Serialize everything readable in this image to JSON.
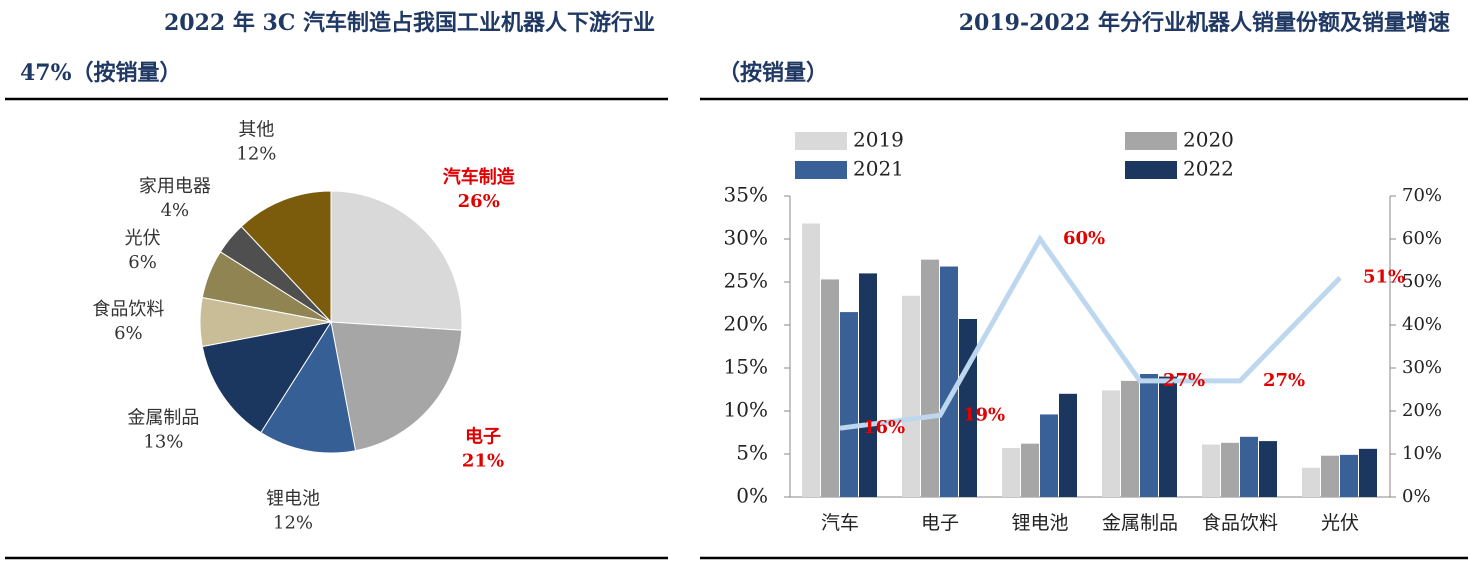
{
  "chart_data": [
    {
      "type": "pie",
      "title": "2022 年 3C 汽车制造占我国工业机器人下游行业",
      "title_line2": "47%（按销量）",
      "categories": [
        "汽车制造",
        "电子",
        "锂电池",
        "金属制品",
        "食品饮料",
        "光伏",
        "家用电器",
        "其他"
      ],
      "values": [
        26,
        21,
        12,
        13,
        6,
        6,
        4,
        12
      ],
      "value_labels": [
        "26%",
        "21%",
        "12%",
        "13%",
        "6%",
        "6%",
        "4%",
        "12%"
      ],
      "colors": [
        "#d9d9d9",
        "#a6a6a6",
        "#365f96",
        "#1b365f",
        "#c9bd98",
        "#8f8452",
        "#4f4f4f",
        "#7a5c0c"
      ],
      "label_colors": [
        "#e00000",
        "#e00000",
        "#333333",
        "#333333",
        "#333333",
        "#333333",
        "#333333",
        "#333333"
      ]
    },
    {
      "type": "bar-line",
      "title": "2019-2022  年分行业机器人销量份额及销量增速",
      "title_line2": "（按销量）",
      "categories": [
        "汽车",
        "电子",
        "锂电池",
        "金属制品",
        "食品饮料",
        "光伏"
      ],
      "series": [
        {
          "name": "2019",
          "color": "#d9d9d9",
          "values": [
            31.8,
            23.4,
            5.7,
            12.4,
            6.1,
            3.4
          ]
        },
        {
          "name": "2020",
          "color": "#a6a6a6",
          "values": [
            25.3,
            27.6,
            6.2,
            13.5,
            6.3,
            4.8
          ]
        },
        {
          "name": "2021",
          "color": "#3a6098",
          "values": [
            21.5,
            26.8,
            9.6,
            14.3,
            7.0,
            4.9
          ]
        },
        {
          "name": "2022",
          "color": "#1b365f",
          "values": [
            26.0,
            20.7,
            12.0,
            14.0,
            6.5,
            5.6
          ]
        }
      ],
      "line": {
        "axis": "y2",
        "color": "#bdd7ee",
        "label_color": "#e00000",
        "values": [
          16,
          19,
          60,
          27,
          27,
          51
        ],
        "value_labels": [
          "16%",
          "19%",
          "60%",
          "27%",
          "27%",
          "51%"
        ]
      },
      "ylim": [
        0,
        35
      ],
      "yticks": [
        {
          "value": 0,
          "label": "0%"
        },
        {
          "value": 5,
          "label": "5%"
        },
        {
          "value": 10,
          "label": "10%"
        },
        {
          "value": 15,
          "label": "15%"
        },
        {
          "value": 20,
          "label": "20%"
        },
        {
          "value": 25,
          "label": "25%"
        },
        {
          "value": 30,
          "label": "30%"
        },
        {
          "value": 35,
          "label": "35%"
        }
      ],
      "y2lim": [
        0,
        70
      ],
      "y2ticks": [
        {
          "value": 0,
          "label": "0%"
        },
        {
          "value": 10,
          "label": "10%"
        },
        {
          "value": 20,
          "label": "20%"
        },
        {
          "value": 30,
          "label": "30%"
        },
        {
          "value": 40,
          "label": "40%"
        },
        {
          "value": 50,
          "label": "50%"
        },
        {
          "value": 60,
          "label": "60%"
        },
        {
          "value": 70,
          "label": "70%"
        }
      ]
    }
  ]
}
